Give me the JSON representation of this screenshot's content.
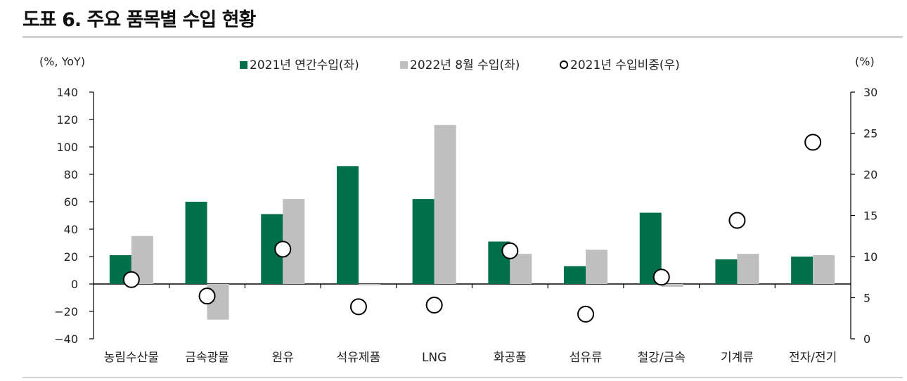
{
  "page": {
    "title": "도표 6. 주요 품목별 수입 현황"
  },
  "chart_data": {
    "type": "bar",
    "categories": [
      "농림수산물",
      "금속광물",
      "원유",
      "석유제품",
      "LNG",
      "화공품",
      "섬유류",
      "철강/금속",
      "기계류",
      "전자/전기"
    ],
    "series": [
      {
        "name": "2021년 연간수입(좌)",
        "type": "bar",
        "axis": "left",
        "color": "#00704a",
        "values": [
          21,
          60,
          51,
          86,
          62,
          31,
          13,
          52,
          18,
          20
        ]
      },
      {
        "name": "2022년 8월 수입(좌)",
        "type": "bar",
        "axis": "left",
        "color": "#bfbfbf",
        "values": [
          35,
          -26,
          62,
          -1,
          116,
          22,
          25,
          -2,
          22,
          21
        ]
      },
      {
        "name": "2021년 수입비중(우)",
        "type": "scatter",
        "axis": "right",
        "marker": "open-circle",
        "values": [
          7.2,
          5.2,
          10.9,
          3.9,
          4.1,
          10.7,
          3.0,
          7.5,
          14.4,
          23.9
        ]
      }
    ],
    "left_axis": {
      "label": "(%, YoY)",
      "ylim": [
        -40,
        140
      ],
      "ticks": [
        -40,
        -20,
        0,
        20,
        40,
        60,
        80,
        100,
        120,
        140
      ]
    },
    "right_axis": {
      "label": "(%)",
      "ylim": [
        0,
        30
      ],
      "ticks": [
        0,
        5,
        10,
        15,
        20,
        25,
        30
      ]
    },
    "legend_position": "top-center",
    "grid": false
  }
}
